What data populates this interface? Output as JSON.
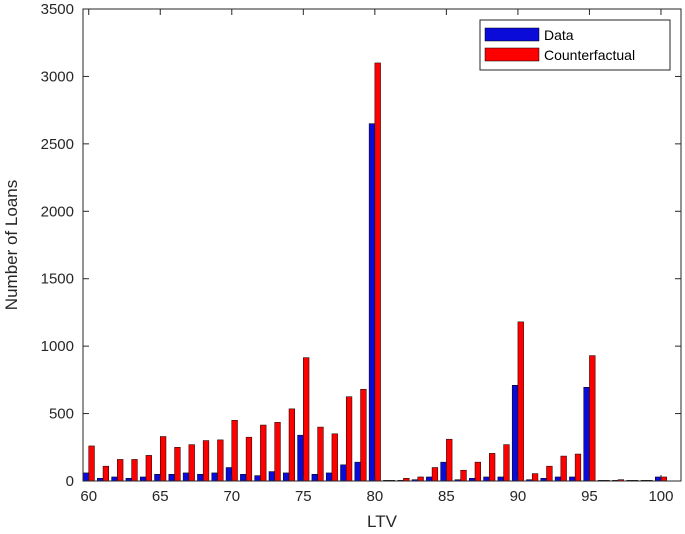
{
  "chart_data": {
    "type": "bar",
    "xlabel": "LTV",
    "ylabel": "Number of Loans",
    "xlim": [
      59.6,
      101.4
    ],
    "ylim": [
      0,
      3500
    ],
    "xticks": [
      60,
      65,
      70,
      75,
      80,
      85,
      90,
      95,
      100
    ],
    "yticks": [
      0,
      500,
      1000,
      1500,
      2000,
      2500,
      3000,
      3500
    ],
    "grid": false,
    "legend_position": "top-right",
    "x": [
      60,
      61,
      62,
      63,
      64,
      65,
      66,
      67,
      68,
      69,
      70,
      71,
      72,
      73,
      74,
      75,
      76,
      77,
      78,
      79,
      80,
      81,
      82,
      83,
      84,
      85,
      86,
      87,
      88,
      89,
      90,
      91,
      92,
      93,
      94,
      95,
      96,
      97,
      98,
      99,
      100
    ],
    "series": [
      {
        "name": "Data",
        "color": "#0a0ad9",
        "values": [
          60,
          20,
          30,
          20,
          30,
          50,
          50,
          60,
          50,
          60,
          100,
          50,
          40,
          70,
          60,
          340,
          50,
          60,
          120,
          140,
          2650,
          5,
          5,
          10,
          30,
          140,
          10,
          20,
          30,
          30,
          710,
          10,
          20,
          30,
          30,
          695,
          5,
          5,
          5,
          5,
          30
        ]
      },
      {
        "name": "Counterfactual",
        "color": "#ff0000",
        "values": [
          260,
          110,
          160,
          160,
          190,
          330,
          250,
          270,
          300,
          305,
          450,
          325,
          415,
          435,
          535,
          915,
          400,
          350,
          625,
          680,
          3100,
          5,
          20,
          30,
          100,
          310,
          80,
          140,
          205,
          270,
          1180,
          55,
          110,
          185,
          200,
          930,
          5,
          10,
          5,
          5,
          30
        ]
      }
    ]
  }
}
